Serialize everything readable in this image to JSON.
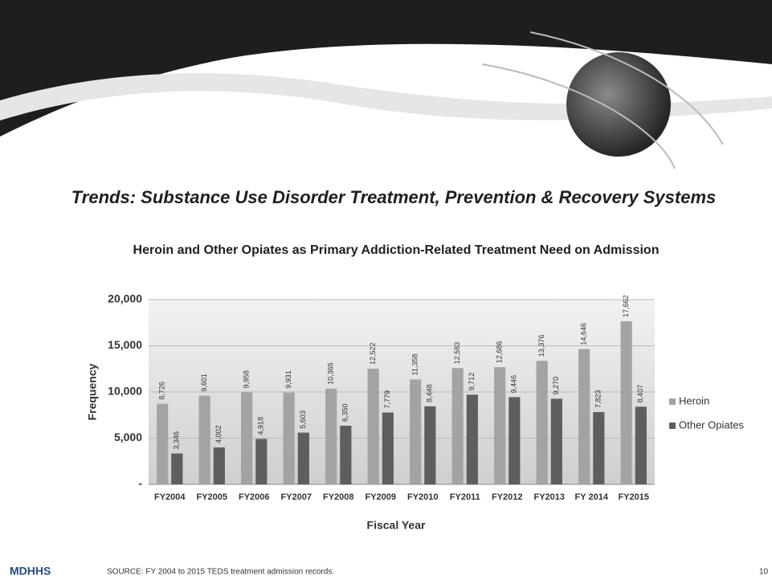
{
  "slide": {
    "title": "Trends: Substance Use Disorder Treatment, Prevention & Recovery Systems",
    "logo": "MDHHS",
    "source": "SOURCE: FY 2004 to 2015 TEDS treatment admission records.",
    "page": "10"
  },
  "chart_data": {
    "type": "bar",
    "title": "Heroin and Other Opiates as Primary Addiction-Related Treatment Need on Admission",
    "x_label": "Fiscal Year",
    "y_label": "Frequency",
    "categories": [
      "FY2004",
      "FY2005",
      "FY2006",
      "FY2007",
      "FY2008",
      "FY2009",
      "FY2010",
      "FY2011",
      "FY2012",
      "FY2013",
      "FY 2014",
      "FY2015"
    ],
    "series": [
      {
        "name": "Heroin",
        "color": "#a3a3a3",
        "values": [
          8726,
          9601,
          9958,
          9931,
          10365,
          12522,
          11358,
          12583,
          12686,
          13376,
          14646,
          17662
        ],
        "value_labels": [
          "8,726",
          "9,601",
          "9,958",
          "9,931",
          "10,365",
          "12,522",
          "11,358",
          "12,583",
          "12,686",
          "13,376",
          "14,646",
          "17,662"
        ]
      },
      {
        "name": "Other Opiates",
        "color": "#5e5e5e",
        "values": [
          3346,
          4002,
          4918,
          5603,
          6350,
          7779,
          8448,
          9712,
          9446,
          9270,
          7823,
          8407
        ],
        "value_labels": [
          "3,346",
          "4,002",
          "4,918",
          "5,603",
          "6,350",
          "7,779",
          "8,448",
          "9,712",
          "9,446",
          "9,270",
          "7,823",
          "8,407"
        ]
      }
    ],
    "ylim": [
      0,
      20000
    ],
    "yticks": [
      {
        "value": 0,
        "label": "-"
      },
      {
        "value": 5000,
        "label": "5,000"
      },
      {
        "value": 10000,
        "label": "10,000"
      },
      {
        "value": 15000,
        "label": "15,000"
      },
      {
        "value": 20000,
        "label": "20,000"
      }
    ],
    "grid": true,
    "legend": "right"
  }
}
